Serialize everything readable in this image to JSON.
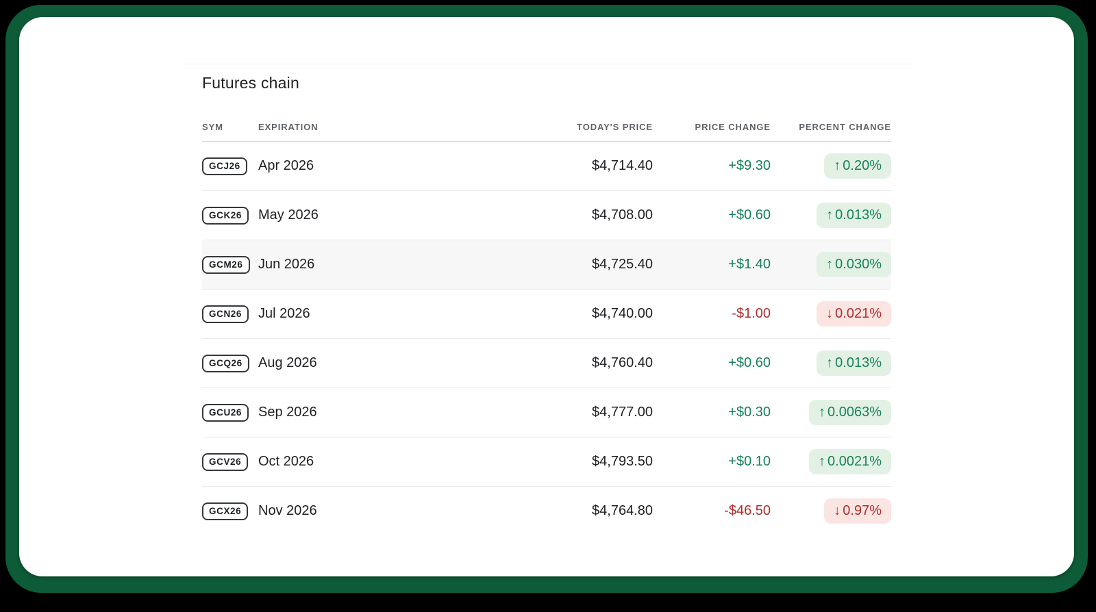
{
  "section": {
    "title": "Futures chain"
  },
  "colors": {
    "frame_green": "#0d5c37",
    "positive_text": "#15815a",
    "negative_text": "#b02f2f",
    "positive_badge_bg": "#e2f1e4",
    "negative_badge_bg": "#fbe5e3",
    "highlight_row_bg": "#f7f7f8"
  },
  "table": {
    "columns": [
      {
        "key": "sym",
        "label": "SYM"
      },
      {
        "key": "expiration",
        "label": "EXPIRATION"
      },
      {
        "key": "price",
        "label": "TODAY'S PRICE"
      },
      {
        "key": "change",
        "label": "PRICE CHANGE"
      },
      {
        "key": "percent",
        "label": "PERCENT CHANGE"
      }
    ],
    "icons": {
      "up": "↑",
      "down": "↓"
    },
    "rows": [
      {
        "sym": "GCJ26",
        "expiration": "Apr 2026",
        "price": "$4,714.40",
        "change": "+$9.30",
        "percent": "0.20%",
        "direction": "up",
        "highlighted": false
      },
      {
        "sym": "GCK26",
        "expiration": "May 2026",
        "price": "$4,708.00",
        "change": "+$0.60",
        "percent": "0.013%",
        "direction": "up",
        "highlighted": false
      },
      {
        "sym": "GCM26",
        "expiration": "Jun 2026",
        "price": "$4,725.40",
        "change": "+$1.40",
        "percent": "0.030%",
        "direction": "up",
        "highlighted": true
      },
      {
        "sym": "GCN26",
        "expiration": "Jul 2026",
        "price": "$4,740.00",
        "change": "-$1.00",
        "percent": "0.021%",
        "direction": "down",
        "highlighted": false
      },
      {
        "sym": "GCQ26",
        "expiration": "Aug 2026",
        "price": "$4,760.40",
        "change": "+$0.60",
        "percent": "0.013%",
        "direction": "up",
        "highlighted": false
      },
      {
        "sym": "GCU26",
        "expiration": "Sep 2026",
        "price": "$4,777.00",
        "change": "+$0.30",
        "percent": "0.0063%",
        "direction": "up",
        "highlighted": false
      },
      {
        "sym": "GCV26",
        "expiration": "Oct 2026",
        "price": "$4,793.50",
        "change": "+$0.10",
        "percent": "0.0021%",
        "direction": "up",
        "highlighted": false
      },
      {
        "sym": "GCX26",
        "expiration": "Nov 2026",
        "price": "$4,764.80",
        "change": "-$46.50",
        "percent": "0.97%",
        "direction": "down",
        "highlighted": false
      }
    ]
  }
}
